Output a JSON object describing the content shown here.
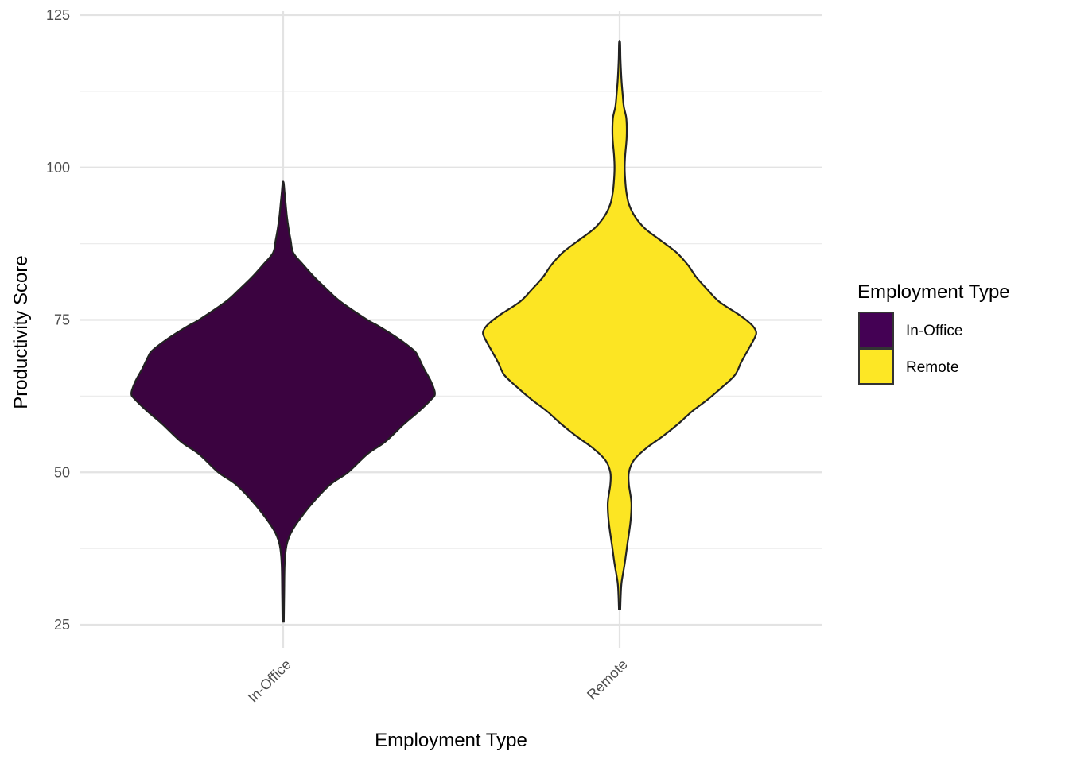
{
  "chart_data": {
    "type": "violin",
    "xlabel": "Employment Type",
    "ylabel": "Productivity Score",
    "categories": [
      "In-Office",
      "Remote"
    ],
    "ylim": [
      20,
      125
    ],
    "yticks": [
      25,
      50,
      75,
      100,
      125
    ],
    "ytick_labels": [
      "25",
      "50",
      "75",
      "100",
      "125"
    ],
    "grid": true,
    "legend": {
      "title": "Employment Type",
      "position": "right",
      "entries": [
        {
          "label": "In-Office",
          "color": "#440154"
        },
        {
          "label": "Remote",
          "color": "#FDE725"
        }
      ]
    },
    "series": [
      {
        "category": "In-Office",
        "color": "#3B0340",
        "range": [
          25.5,
          97.5
        ],
        "density_width": [
          [
            25.5,
            0.004
          ],
          [
            30,
            0.006
          ],
          [
            35,
            0.009
          ],
          [
            38,
            0.02
          ],
          [
            40,
            0.045
          ],
          [
            42,
            0.09
          ],
          [
            45,
            0.175
          ],
          [
            48,
            0.28
          ],
          [
            50,
            0.385
          ],
          [
            53,
            0.5
          ],
          [
            55,
            0.605
          ],
          [
            58,
            0.72
          ],
          [
            60,
            0.805
          ],
          [
            62,
            0.88
          ],
          [
            63,
            0.9
          ],
          [
            65,
            0.875
          ],
          [
            67,
            0.835
          ],
          [
            69,
            0.8
          ],
          [
            70,
            0.775
          ],
          [
            72,
            0.68
          ],
          [
            74,
            0.565
          ],
          [
            75,
            0.5
          ],
          [
            78,
            0.34
          ],
          [
            80,
            0.26
          ],
          [
            82,
            0.185
          ],
          [
            84,
            0.12
          ],
          [
            86,
            0.06
          ],
          [
            88,
            0.045
          ],
          [
            90,
            0.032
          ],
          [
            92,
            0.022
          ],
          [
            94,
            0.015
          ],
          [
            96,
            0.008
          ],
          [
            97.5,
            0.003
          ]
        ]
      },
      {
        "category": "Remote",
        "color": "#FCE523",
        "range": [
          27.5,
          120.5
        ],
        "density_width": [
          [
            27.5,
            0.004
          ],
          [
            30,
            0.007
          ],
          [
            32,
            0.012
          ],
          [
            35,
            0.03
          ],
          [
            38,
            0.045
          ],
          [
            42,
            0.065
          ],
          [
            45,
            0.07
          ],
          [
            48,
            0.055
          ],
          [
            50,
            0.055
          ],
          [
            52,
            0.085
          ],
          [
            54,
            0.16
          ],
          [
            56,
            0.26
          ],
          [
            58,
            0.35
          ],
          [
            60,
            0.43
          ],
          [
            62,
            0.525
          ],
          [
            64,
            0.61
          ],
          [
            66,
            0.685
          ],
          [
            68,
            0.72
          ],
          [
            70,
            0.76
          ],
          [
            72,
            0.8
          ],
          [
            73,
            0.81
          ],
          [
            74,
            0.79
          ],
          [
            75,
            0.75
          ],
          [
            76,
            0.7
          ],
          [
            78,
            0.59
          ],
          [
            80,
            0.52
          ],
          [
            82,
            0.455
          ],
          [
            84,
            0.405
          ],
          [
            86,
            0.34
          ],
          [
            88,
            0.245
          ],
          [
            90,
            0.15
          ],
          [
            92,
            0.09
          ],
          [
            94,
            0.055
          ],
          [
            96,
            0.04
          ],
          [
            98,
            0.033
          ],
          [
            100,
            0.03
          ],
          [
            102,
            0.033
          ],
          [
            105,
            0.042
          ],
          [
            108,
            0.04
          ],
          [
            110,
            0.025
          ],
          [
            112,
            0.018
          ],
          [
            114,
            0.012
          ],
          [
            116,
            0.008
          ],
          [
            118,
            0.005
          ],
          [
            120.5,
            0.003
          ]
        ]
      }
    ]
  }
}
